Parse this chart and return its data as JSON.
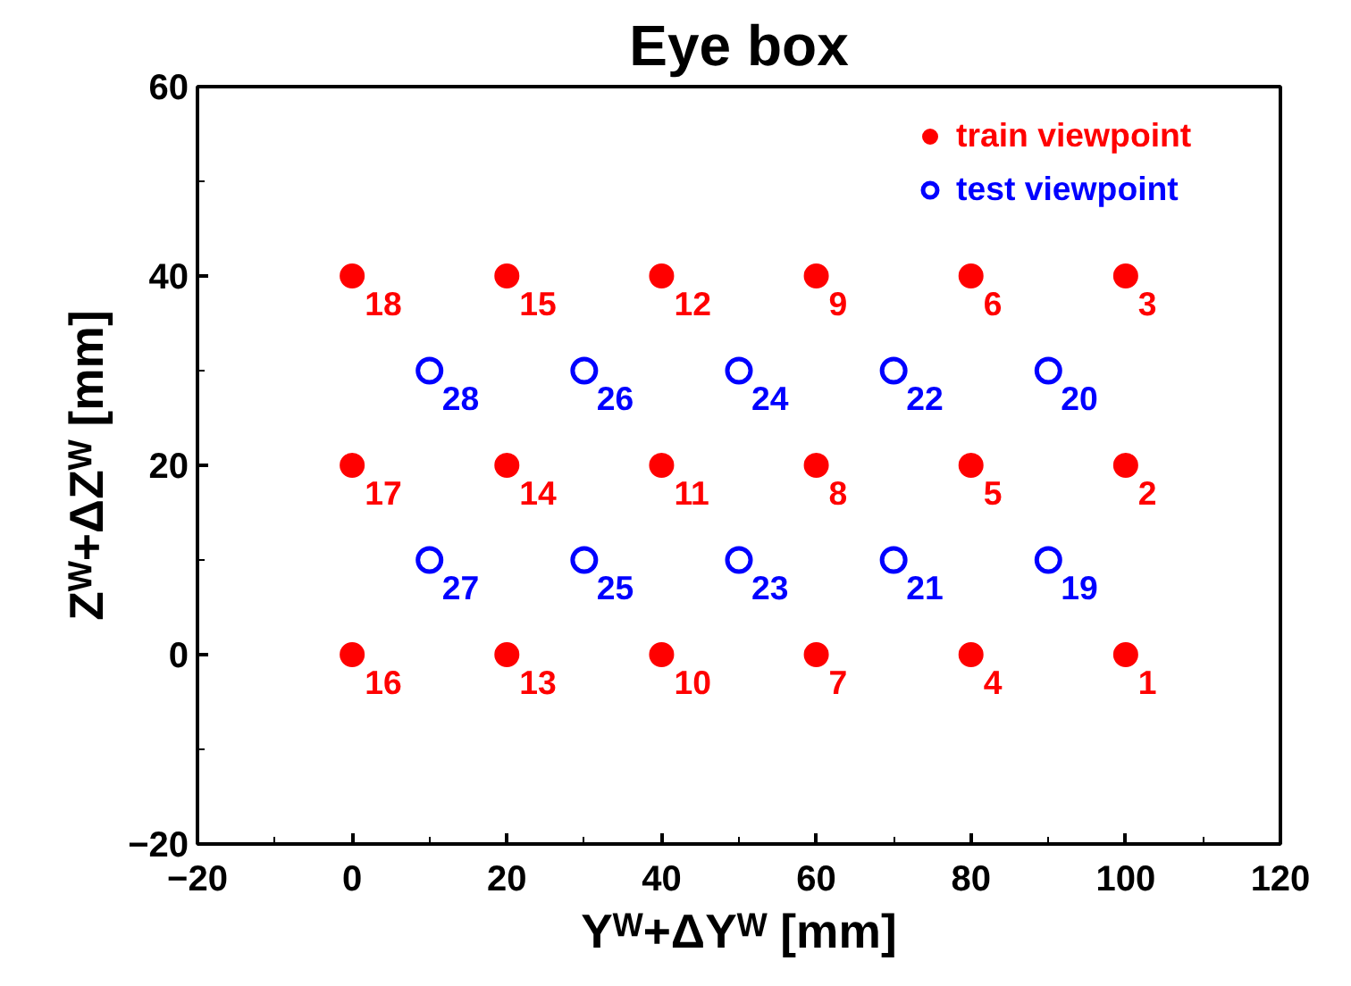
{
  "chart_data": {
    "type": "scatter",
    "title": "Eye box",
    "xlabel": "Yᵂ+ΔYᵂ [mm]",
    "ylabel": "Zᵂ+ΔZᵂ [mm]",
    "xlim": [
      -20,
      120
    ],
    "xticks": [
      -20,
      0,
      20,
      40,
      60,
      80,
      100,
      120
    ],
    "ylim": [
      -20,
      60
    ],
    "yticks": [
      -20,
      0,
      20,
      40,
      60
    ],
    "grid": false,
    "legend": "top right",
    "series": [
      {
        "name": "train viewpoint",
        "color": "#ff0000",
        "marker": "circle",
        "x": [
          100,
          100,
          100,
          80,
          80,
          80,
          60,
          60,
          60,
          40,
          40,
          40,
          20,
          20,
          20,
          0,
          0,
          0
        ],
        "values": [
          0,
          20,
          40,
          0,
          20,
          40,
          0,
          20,
          40,
          0,
          20,
          40,
          0,
          20,
          40,
          0,
          20,
          40
        ]
      },
      {
        "name": "test viewpoint",
        "color": "#0000ff",
        "marker": "circle_open",
        "x": [
          90,
          90,
          70,
          70,
          50,
          50,
          30,
          30,
          10,
          10
        ],
        "values": [
          10,
          30,
          10,
          30,
          10,
          30,
          10,
          30,
          10,
          30
        ]
      }
    ],
    "annotations": [
      {
        "text": "1",
        "x": 100,
        "y": 0
      },
      {
        "text": "2",
        "x": 100,
        "y": 20
      },
      {
        "text": "3",
        "x": 100,
        "y": 40
      },
      {
        "text": "4",
        "x": 80,
        "y": 0
      },
      {
        "text": "5",
        "x": 80,
        "y": 20
      },
      {
        "text": "6",
        "x": 80,
        "y": 40
      },
      {
        "text": "7",
        "x": 60,
        "y": 0
      },
      {
        "text": "8",
        "x": 60,
        "y": 20
      },
      {
        "text": "9",
        "x": 60,
        "y": 40
      },
      {
        "text": "10",
        "x": 40,
        "y": 0
      },
      {
        "text": "11",
        "x": 40,
        "y": 20
      },
      {
        "text": "12",
        "x": 40,
        "y": 40
      },
      {
        "text": "13",
        "x": 20,
        "y": 0
      },
      {
        "text": "14",
        "x": 20,
        "y": 20
      },
      {
        "text": "15",
        "x": 20,
        "y": 40
      },
      {
        "text": "16",
        "x": 0,
        "y": 0
      },
      {
        "text": "17",
        "x": 0,
        "y": 20
      },
      {
        "text": "18",
        "x": 0,
        "y": 40
      },
      {
        "text": "19",
        "x": 90,
        "y": 10
      },
      {
        "text": "20",
        "x": 90,
        "y": 30
      },
      {
        "text": "21",
        "x": 70,
        "y": 10
      },
      {
        "text": "22",
        "x": 70,
        "y": 30
      },
      {
        "text": "23",
        "x": 50,
        "y": 10
      },
      {
        "text": "24",
        "x": 50,
        "y": 30
      },
      {
        "text": "25",
        "x": 30,
        "y": 10
      },
      {
        "text": "26",
        "x": 30,
        "y": 30
      },
      {
        "text": "27",
        "x": 10,
        "y": 10
      },
      {
        "text": "28",
        "x": 10,
        "y": 30
      }
    ]
  }
}
